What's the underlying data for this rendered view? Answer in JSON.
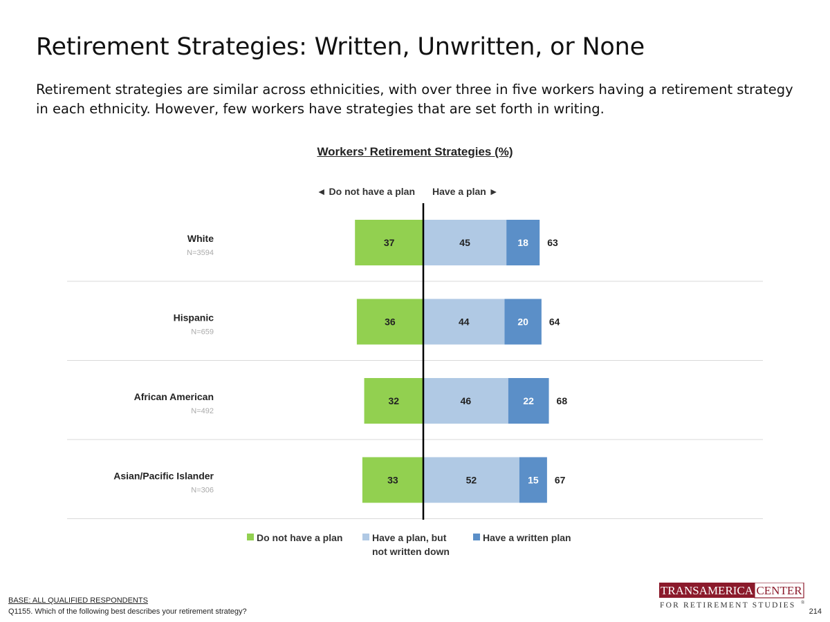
{
  "page": {
    "title": "Retirement Strategies: Written, Unwritten, or None",
    "subtitle": "Retirement strategies are similar across ethnicities, with over three in five workers having a retirement strategy in each ethnicity. However, few workers have strategies that are set forth in writing."
  },
  "chart_data": {
    "type": "bar",
    "orientation": "horizontal-diverging",
    "title": "Workers’ Retirement Strategies (%)",
    "direction_labels": {
      "left": "◄ Do not have a plan",
      "right": "Have a plan ►"
    },
    "categories": [
      "White",
      "Hispanic",
      "African American",
      "Asian/Pacific Islander"
    ],
    "sample_sizes": [
      "N=3594",
      "N=659",
      "N=492",
      "N=306"
    ],
    "series": [
      {
        "name": "Do not have a plan",
        "side": "left",
        "color": "#92d050",
        "values": [
          37,
          36,
          32,
          33
        ]
      },
      {
        "name": "Have a plan, but not written down",
        "side": "right",
        "color": "#b0c9e4",
        "values": [
          45,
          44,
          46,
          52
        ]
      },
      {
        "name": "Have a written plan",
        "side": "right",
        "color": "#5b8fc8",
        "values": [
          18,
          20,
          22,
          15
        ]
      }
    ],
    "totals_have_plan": [
      63,
      64,
      68,
      67
    ],
    "legend_position": "bottom",
    "grid": false
  },
  "footer": {
    "base": "BASE: ALL QUALIFIED RESPONDENTS",
    "question": "Q1155. Which of the following best describes your retirement strategy?",
    "page_number": "214"
  },
  "logo": {
    "line1_left": "TRANSAMERICA",
    "line1_right": "CENTER",
    "line2": "FOR RETIREMENT STUDIES",
    "mark": "®",
    "brand_color": "#8b1a2b"
  }
}
